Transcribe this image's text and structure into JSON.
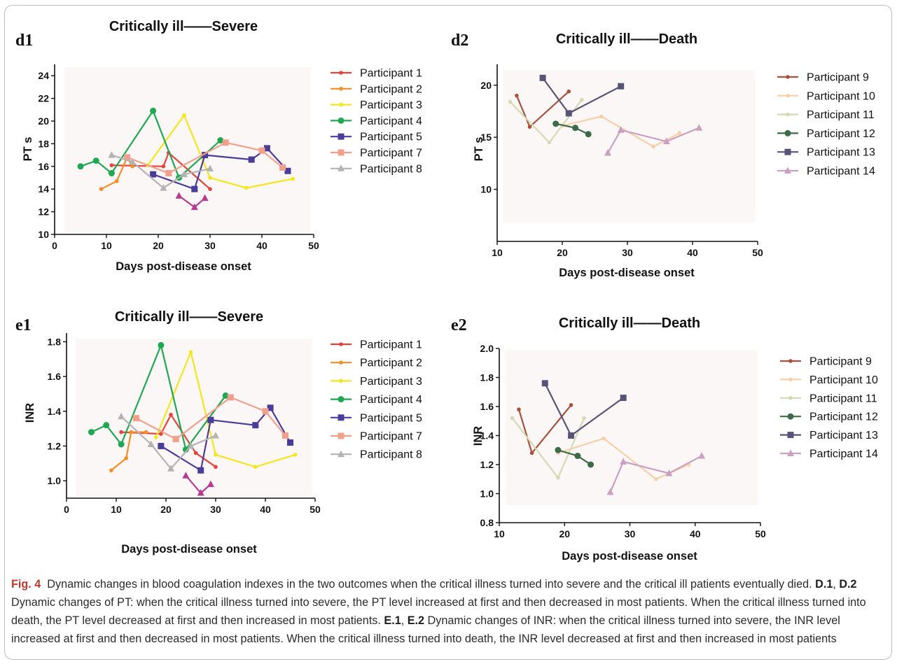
{
  "panels": [
    {
      "id": "d1",
      "label": "d1",
      "title": "Critically ill——Severe",
      "xlabel": "Days post-disease onset",
      "ylabel": "PT s",
      "xlim": [
        0,
        50
      ],
      "ylim": [
        10,
        25
      ],
      "xticks": [
        0,
        10,
        20,
        30,
        40,
        50
      ],
      "yticks": [
        10,
        12,
        14,
        16,
        18,
        20,
        22,
        24
      ],
      "series": [
        {
          "name": "Participant 1",
          "color": "#e8433a",
          "marker": "dot",
          "x": [
            11,
            21,
            22,
            30
          ],
          "y": [
            16.1,
            16.0,
            17.2,
            14.0
          ]
        },
        {
          "name": "Participant 2",
          "color": "#f58c24",
          "marker": "dot",
          "x": [
            9,
            12,
            14,
            15
          ],
          "y": [
            14.0,
            14.7,
            16.8,
            16.0
          ]
        },
        {
          "name": "Participant 3",
          "color": "#f4e51c",
          "marker": "dot",
          "x": [
            18,
            25,
            30,
            37,
            46
          ],
          "y": [
            16.1,
            20.5,
            15.0,
            14.1,
            14.9
          ]
        },
        {
          "name": "Participant 4",
          "color": "#1fa852",
          "marker": "circle",
          "x": [
            5,
            8,
            11,
            19,
            24,
            32
          ],
          "y": [
            16.0,
            16.5,
            15.4,
            20.9,
            15.0,
            18.3
          ]
        },
        {
          "name": "Participant 5",
          "color": "#4a3d9a",
          "marker": "square",
          "x": [
            19,
            27,
            29,
            38,
            41,
            45
          ],
          "y": [
            15.3,
            14.0,
            17.0,
            16.6,
            17.6,
            15.6
          ]
        },
        {
          "name": "Participant 7",
          "color": "#f2a08c",
          "marker": "square",
          "x": [
            14,
            22,
            33,
            40,
            44
          ],
          "y": [
            16.8,
            15.4,
            18.1,
            17.4,
            15.9
          ]
        },
        {
          "name": "Participant 8",
          "color": "#b3b3b3",
          "marker": "triangle",
          "x": [
            11,
            15,
            21,
            25,
            30
          ],
          "y": [
            17.0,
            16.4,
            14.1,
            15.3,
            15.8
          ]
        },
        {
          "name": "",
          "color": "#b73a8e",
          "marker": "triangle",
          "x": [
            24,
            27,
            29
          ],
          "y": [
            13.4,
            12.4,
            13.2
          ]
        }
      ]
    },
    {
      "id": "d2",
      "label": "d2",
      "title": "Critically ill——Death",
      "xlabel": "Days post-disease onset",
      "ylabel": "PT s",
      "xlim": [
        10,
        50
      ],
      "ylim": [
        5,
        22
      ],
      "xticks": [
        10,
        20,
        30,
        40,
        50
      ],
      "yticks": [
        10,
        15,
        20
      ],
      "series": [
        {
          "name": "Participant 9",
          "color": "#a8503a",
          "marker": "dot",
          "x": [
            13,
            15,
            21
          ],
          "y": [
            19.0,
            16.0,
            19.4
          ]
        },
        {
          "name": "Participant 10",
          "color": "#f7d0a8",
          "marker": "dot",
          "x": [
            20,
            26,
            34,
            38
          ],
          "y": [
            16.1,
            17.0,
            14.1,
            15.4
          ]
        },
        {
          "name": "Participant 11",
          "color": "#d4dab4",
          "marker": "dot",
          "x": [
            12,
            18,
            23
          ],
          "y": [
            18.4,
            14.5,
            18.6
          ]
        },
        {
          "name": "Participant 12",
          "color": "#3d6b48",
          "marker": "circle",
          "x": [
            19,
            22,
            24
          ],
          "y": [
            16.3,
            15.9,
            15.3
          ]
        },
        {
          "name": "Participant 13",
          "color": "#575478",
          "marker": "square",
          "x": [
            17,
            21,
            29
          ],
          "y": [
            20.7,
            17.3,
            19.9
          ]
        },
        {
          "name": "Participant 14",
          "color": "#c9a0bf",
          "marker": "triangle",
          "x": [
            27,
            29,
            36,
            41
          ],
          "y": [
            13.5,
            15.7,
            14.6,
            15.9
          ]
        }
      ]
    },
    {
      "id": "e1",
      "label": "e1",
      "title": "Critically ill——Severe",
      "xlabel": "Days post-disease onset",
      "ylabel": "INR",
      "xlim": [
        0,
        50
      ],
      "ylim": [
        0.9,
        1.85
      ],
      "xticks": [
        0,
        10,
        20,
        30,
        40,
        50
      ],
      "yticks": [
        1.0,
        1.2,
        1.4,
        1.6,
        1.8
      ],
      "yformat": 1,
      "series": [
        {
          "name": "Participant 1",
          "color": "#e8433a",
          "marker": "dot",
          "x": [
            11,
            19,
            21,
            26,
            30
          ],
          "y": [
            1.28,
            1.27,
            1.38,
            1.16,
            1.08
          ]
        },
        {
          "name": "Participant 2",
          "color": "#f58c24",
          "marker": "dot",
          "x": [
            9,
            12,
            13,
            16
          ],
          "y": [
            1.06,
            1.13,
            1.28,
            1.28
          ]
        },
        {
          "name": "Participant 3",
          "color": "#f4e51c",
          "marker": "dot",
          "x": [
            18,
            25,
            30,
            38,
            46
          ],
          "y": [
            1.25,
            1.74,
            1.15,
            1.08,
            1.15
          ]
        },
        {
          "name": "Participant 4",
          "color": "#1fa852",
          "marker": "circle",
          "x": [
            5,
            8,
            11,
            19,
            24,
            32
          ],
          "y": [
            1.28,
            1.32,
            1.21,
            1.78,
            1.18,
            1.49
          ]
        },
        {
          "name": "Participant 5",
          "color": "#4a3d9a",
          "marker": "square",
          "x": [
            19,
            27,
            29,
            38,
            41,
            45
          ],
          "y": [
            1.2,
            1.06,
            1.35,
            1.32,
            1.42,
            1.22
          ]
        },
        {
          "name": "Participant 7",
          "color": "#f2a08c",
          "marker": "square",
          "x": [
            14,
            22,
            33,
            40,
            44
          ],
          "y": [
            1.36,
            1.24,
            1.48,
            1.4,
            1.26
          ]
        },
        {
          "name": "Participant 8",
          "color": "#b3b3b3",
          "marker": "triangle",
          "x": [
            11,
            17,
            21,
            25,
            30
          ],
          "y": [
            1.37,
            1.21,
            1.07,
            1.2,
            1.26
          ]
        },
        {
          "name": "",
          "color": "#b73a8e",
          "marker": "triangle",
          "x": [
            24,
            27,
            29
          ],
          "y": [
            1.03,
            0.93,
            0.98
          ]
        }
      ]
    },
    {
      "id": "e2",
      "label": "e2",
      "title": "Critically ill——Death",
      "xlabel": "Days post-disease onset",
      "ylabel": "INR",
      "xlim": [
        10,
        50
      ],
      "ylim": [
        0.8,
        2.0
      ],
      "xticks": [
        10,
        20,
        30,
        40,
        50
      ],
      "yticks": [
        0.8,
        1.0,
        1.2,
        1.4,
        1.6,
        1.8,
        2.0
      ],
      "yformat": 1,
      "series": [
        {
          "name": "Participant 9",
          "color": "#a8503a",
          "marker": "dot",
          "x": [
            13,
            15,
            21
          ],
          "y": [
            1.58,
            1.28,
            1.61
          ]
        },
        {
          "name": "Participant 10",
          "color": "#f7d0a8",
          "marker": "dot",
          "x": [
            19,
            26,
            34,
            39
          ],
          "y": [
            1.28,
            1.38,
            1.1,
            1.2
          ]
        },
        {
          "name": "Participant 11",
          "color": "#d4dab4",
          "marker": "dot",
          "x": [
            12,
            19,
            23
          ],
          "y": [
            1.52,
            1.11,
            1.52
          ]
        },
        {
          "name": "Participant 12",
          "color": "#3d6b48",
          "marker": "circle",
          "x": [
            19,
            22,
            24
          ],
          "y": [
            1.3,
            1.26,
            1.2
          ]
        },
        {
          "name": "Participant 13",
          "color": "#575478",
          "marker": "square",
          "x": [
            17,
            21,
            29
          ],
          "y": [
            1.76,
            1.4,
            1.66
          ]
        },
        {
          "name": "Participant 14",
          "color": "#c9a0bf",
          "marker": "triangle",
          "x": [
            27,
            29,
            36,
            41
          ],
          "y": [
            1.01,
            1.22,
            1.14,
            1.26
          ]
        }
      ]
    }
  ],
  "caption": {
    "fig_label": "Fig. 4",
    "intro": "Dynamic changes in blood coagulation indexes in the two outcomes when the critical illness turned into severe and the critical ill patients eventually died.",
    "d1": "D.1",
    "sep1": ", ",
    "d2": "D.2",
    "pt_text": "Dynamic changes of PT: when the critical illness turned into severe, the PT level increased at first and then decreased in most patients. When the critical illness turned into death, the PT level decreased at first and then increased in most patients.",
    "e1": "E.1",
    "sep2": ", ",
    "e2": "E.2",
    "inr_text": "Dynamic changes of INR: when the critical illness turned into severe, the INR level increased at first and then decreased in most patients. When the critical illness turned into death, the INR level decreased at first and then increased in most patients"
  },
  "chart_data": [
    {
      "type": "line",
      "title": "Critically ill——Severe",
      "xlabel": "Days post-disease onset",
      "ylabel": "PT s",
      "xlim": [
        0,
        50
      ],
      "ylim": [
        10,
        25
      ],
      "grid": false,
      "legend": "right",
      "series": [
        {
          "name": "Participant 1",
          "x": [
            11,
            21,
            22,
            30
          ],
          "y": [
            16.1,
            16.0,
            17.2,
            14.0
          ]
        },
        {
          "name": "Participant 2",
          "x": [
            9,
            12,
            14,
            15
          ],
          "y": [
            14.0,
            14.7,
            16.8,
            16.0
          ]
        },
        {
          "name": "Participant 3",
          "x": [
            18,
            25,
            30,
            37,
            46
          ],
          "y": [
            16.1,
            20.5,
            15.0,
            14.1,
            14.9
          ]
        },
        {
          "name": "Participant 4",
          "x": [
            5,
            8,
            11,
            19,
            24,
            32
          ],
          "y": [
            16.0,
            16.5,
            15.4,
            20.9,
            15.0,
            18.3
          ]
        },
        {
          "name": "Participant 5",
          "x": [
            19,
            27,
            29,
            38,
            41,
            45
          ],
          "y": [
            15.3,
            14.0,
            17.0,
            16.6,
            17.6,
            15.6
          ]
        },
        {
          "name": "Participant 7",
          "x": [
            14,
            22,
            33,
            40,
            44
          ],
          "y": [
            16.8,
            15.4,
            18.1,
            17.4,
            15.9
          ]
        },
        {
          "name": "Participant 8",
          "x": [
            11,
            15,
            21,
            25,
            30
          ],
          "y": [
            17.0,
            16.4,
            14.1,
            15.3,
            15.8
          ]
        },
        {
          "x": [
            24,
            27,
            29
          ],
          "y": [
            13.4,
            12.4,
            13.2
          ]
        }
      ]
    },
    {
      "type": "line",
      "title": "Critically ill——Death",
      "xlabel": "Days post-disease onset",
      "ylabel": "PT s",
      "xlim": [
        10,
        50
      ],
      "ylim": [
        5,
        22
      ],
      "grid": false,
      "legend": "right",
      "series": [
        {
          "name": "Participant 9",
          "x": [
            13,
            15,
            21
          ],
          "y": [
            19.0,
            16.0,
            19.4
          ]
        },
        {
          "name": "Participant 10",
          "x": [
            20,
            26,
            34,
            38
          ],
          "y": [
            16.1,
            17.0,
            14.1,
            15.4
          ]
        },
        {
          "name": "Participant 11",
          "x": [
            12,
            18,
            23
          ],
          "y": [
            18.4,
            14.5,
            18.6
          ]
        },
        {
          "name": "Participant 12",
          "x": [
            19,
            22,
            24
          ],
          "y": [
            16.3,
            15.9,
            15.3
          ]
        },
        {
          "name": "Participant 13",
          "x": [
            17,
            21,
            29
          ],
          "y": [
            20.7,
            17.3,
            19.9
          ]
        },
        {
          "name": "Participant 14",
          "x": [
            27,
            29,
            36,
            41
          ],
          "y": [
            13.5,
            15.7,
            14.6,
            15.9
          ]
        }
      ]
    },
    {
      "type": "line",
      "title": "Critically ill——Severe",
      "xlabel": "Days post-disease onset",
      "ylabel": "INR",
      "xlim": [
        0,
        50
      ],
      "ylim": [
        0.9,
        1.85
      ],
      "grid": false,
      "legend": "right",
      "series": [
        {
          "name": "Participant 1",
          "x": [
            11,
            19,
            21,
            26,
            30
          ],
          "y": [
            1.28,
            1.27,
            1.38,
            1.16,
            1.08
          ]
        },
        {
          "name": "Participant 2",
          "x": [
            9,
            12,
            13,
            16
          ],
          "y": [
            1.06,
            1.13,
            1.28,
            1.28
          ]
        },
        {
          "name": "Participant 3",
          "x": [
            18,
            25,
            30,
            38,
            46
          ],
          "y": [
            1.25,
            1.74,
            1.15,
            1.08,
            1.15
          ]
        },
        {
          "name": "Participant 4",
          "x": [
            5,
            8,
            11,
            19,
            24,
            32
          ],
          "y": [
            1.28,
            1.32,
            1.21,
            1.78,
            1.18,
            1.49
          ]
        },
        {
          "name": "Participant 5",
          "x": [
            19,
            27,
            29,
            38,
            41,
            45
          ],
          "y": [
            1.2,
            1.06,
            1.35,
            1.32,
            1.42,
            1.22
          ]
        },
        {
          "name": "Participant 7",
          "x": [
            14,
            22,
            33,
            40,
            44
          ],
          "y": [
            1.36,
            1.24,
            1.48,
            1.4,
            1.26
          ]
        },
        {
          "name": "Participant 8",
          "x": [
            11,
            17,
            21,
            25,
            30
          ],
          "y": [
            1.37,
            1.21,
            1.07,
            1.2,
            1.26
          ]
        },
        {
          "x": [
            24,
            27,
            29
          ],
          "y": [
            1.03,
            0.93,
            0.98
          ]
        }
      ]
    },
    {
      "type": "line",
      "title": "Critically ill——Death",
      "xlabel": "Days post-disease onset",
      "ylabel": "INR",
      "xlim": [
        10,
        50
      ],
      "ylim": [
        0.8,
        2.0
      ],
      "grid": false,
      "legend": "right",
      "series": [
        {
          "name": "Participant 9",
          "x": [
            13,
            15,
            21
          ],
          "y": [
            1.58,
            1.28,
            1.61
          ]
        },
        {
          "name": "Participant 10",
          "x": [
            19,
            26,
            34,
            39
          ],
          "y": [
            1.28,
            1.38,
            1.1,
            1.2
          ]
        },
        {
          "name": "Participant 11",
          "x": [
            12,
            19,
            23
          ],
          "y": [
            1.52,
            1.11,
            1.52
          ]
        },
        {
          "name": "Participant 12",
          "x": [
            19,
            22,
            24
          ],
          "y": [
            1.3,
            1.26,
            1.2
          ]
        },
        {
          "name": "Participant 13",
          "x": [
            17,
            21,
            29
          ],
          "y": [
            1.76,
            1.4,
            1.66
          ]
        },
        {
          "name": "Participant 14",
          "x": [
            27,
            29,
            36,
            41
          ],
          "y": [
            1.01,
            1.22,
            1.14,
            1.26
          ]
        }
      ]
    }
  ]
}
